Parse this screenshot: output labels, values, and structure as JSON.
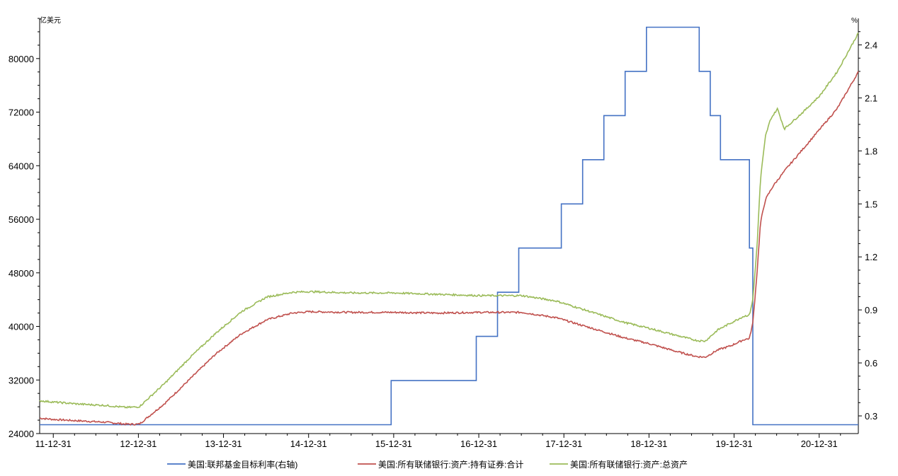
{
  "chart_data": {
    "type": "line",
    "left_unit": "亿美元",
    "right_unit": "%",
    "ylim_left": [
      24000,
      86000
    ],
    "ylim_right": [
      0.2,
      2.55
    ],
    "xlim": [
      2011.83,
      2021.45
    ],
    "left_ticks": [
      24000,
      32000,
      40000,
      48000,
      56000,
      64000,
      72000,
      80000
    ],
    "left_tick_labels": [
      "24000",
      "32000",
      "40000",
      "48000",
      "56000",
      "64000",
      "72000",
      "80000"
    ],
    "right_ticks": [
      0.3,
      0.6,
      0.9,
      1.2,
      1.5,
      1.8,
      2.1,
      2.4
    ],
    "right_tick_labels": [
      "0.3",
      "0.6",
      "0.9",
      "1.2",
      "1.5",
      "1.8",
      "2.1",
      "2.4"
    ],
    "x_ticks": [
      2011.99,
      2012.99,
      2013.99,
      2014.99,
      2015.99,
      2016.99,
      2017.99,
      2018.99,
      2019.99,
      2020.99
    ],
    "x_tick_labels": [
      "11-12-31",
      "12-12-31",
      "13-12-31",
      "14-12-31",
      "15-12-31",
      "16-12-31",
      "17-12-31",
      "18-12-31",
      "19-12-31",
      "20-12-31"
    ],
    "legend_position": "bottom",
    "grid": false,
    "series": [
      {
        "name": "美国:联邦基金目标利率(右轴)",
        "axis": "right",
        "color": "#4472c4",
        "step": true,
        "x": [
          2011.83,
          2015.96,
          2016.96,
          2017.21,
          2017.46,
          2017.96,
          2018.21,
          2018.46,
          2018.71,
          2018.96,
          2019.58,
          2019.71,
          2019.83,
          2020.17,
          2020.21,
          2021.45
        ],
        "y": [
          0.25,
          0.5,
          0.75,
          1.0,
          1.25,
          1.5,
          1.75,
          2.0,
          2.25,
          2.5,
          2.25,
          2.0,
          1.75,
          1.25,
          0.25,
          0.25
        ]
      },
      {
        "name": "美国:所有联储银行:资产:持有证券:合计",
        "axis": "left",
        "color": "#c0504d",
        "x": [
          2011.83,
          2012.0,
          2012.3,
          2012.6,
          2012.85,
          2013.0,
          2013.3,
          2013.6,
          2013.9,
          2014.2,
          2014.5,
          2014.8,
          2015.0,
          2015.5,
          2016.0,
          2016.5,
          2017.0,
          2017.5,
          2017.9,
          2018.3,
          2018.7,
          2019.0,
          2019.3,
          2019.55,
          2019.65,
          2019.8,
          2019.95,
          2020.1,
          2020.17,
          2020.21,
          2020.26,
          2020.3,
          2020.36,
          2020.45,
          2020.6,
          2020.8,
          2021.0,
          2021.2,
          2021.45
        ],
        "y": [
          26300,
          26100,
          25900,
          25700,
          25400,
          25400,
          28500,
          32200,
          35900,
          38900,
          41000,
          42000,
          42200,
          42100,
          42100,
          42000,
          42100,
          42100,
          41300,
          39800,
          38300,
          37400,
          36300,
          35500,
          35400,
          36500,
          37100,
          38000,
          38200,
          40500,
          48000,
          55500,
          59000,
          61000,
          63500,
          66500,
          69500,
          72500,
          78000
        ]
      },
      {
        "name": "美国:所有联储银行:资产:总资产",
        "axis": "left",
        "color": "#9bbb59",
        "x": [
          2011.83,
          2012.0,
          2012.3,
          2012.6,
          2012.85,
          2013.0,
          2013.3,
          2013.6,
          2013.9,
          2014.2,
          2014.5,
          2014.8,
          2015.0,
          2015.5,
          2016.0,
          2016.5,
          2017.0,
          2017.5,
          2017.9,
          2018.3,
          2018.7,
          2019.0,
          2019.3,
          2019.55,
          2019.65,
          2019.8,
          2019.95,
          2020.1,
          2020.17,
          2020.21,
          2020.26,
          2020.3,
          2020.36,
          2020.42,
          2020.5,
          2020.58,
          2020.8,
          2021.0,
          2021.2,
          2021.45
        ],
        "y": [
          28900,
          28700,
          28400,
          28200,
          27900,
          28000,
          31500,
          35400,
          39000,
          42200,
          44400,
          45100,
          45200,
          45000,
          45000,
          44800,
          44600,
          44600,
          43800,
          42200,
          40600,
          39700,
          38700,
          37900,
          37800,
          39500,
          40500,
          41500,
          41700,
          44000,
          52000,
          62000,
          68500,
          71000,
          72500,
          69500,
          72000,
          74500,
          78000,
          83800
        ]
      }
    ]
  }
}
